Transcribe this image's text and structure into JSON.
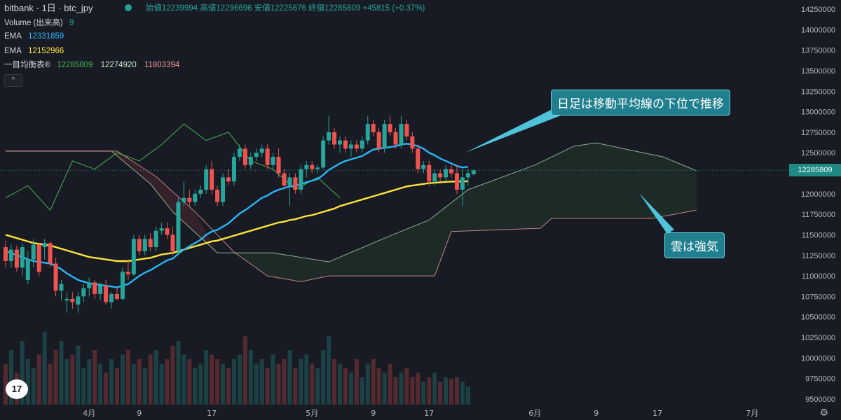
{
  "header": {
    "symbol": "bitbank · 1日 · btc_jpy",
    "ohlc": "始値12239994 高値12296696 安値12225676 終値12285809 +45815 (+0.37%)"
  },
  "legend": {
    "volume_label": "Volume (出来高)",
    "volume_value": "9",
    "ema1_label": "EMA",
    "ema1_value": "12331859",
    "ema2_label": "EMA",
    "ema2_value": "12152966",
    "ichimoku_label": "一目均衡表®",
    "ichimoku_v1": "12285809",
    "ichimoku_v2": "12274920",
    "ichimoku_v3": "11803394",
    "collapse": "^"
  },
  "colors": {
    "up": "#26a69a",
    "down": "#ef5350",
    "ema_fast": "#29b6f6",
    "ema_slow": "#fbe53b",
    "cloud_bull_edge": "#a5d6a7",
    "cloud_bear_edge": "#ef9a9a",
    "chikou": "#4caf50",
    "ichi_v2_color": "#cfe8cf",
    "ichi_v3_color": "#ef9a9a",
    "accent": "#1f8a85"
  },
  "annotations": {
    "callout1": "日足は移動平均線の下位で推移",
    "callout2": "雲は強気"
  },
  "last_price_tag": "12285809",
  "tv_logo": "17",
  "gear_icon": "⚙",
  "chart_data": {
    "type": "candlestick",
    "ylim": [
      9400000,
      14300000
    ],
    "y_ticks": [
      "14250000",
      "14000000",
      "13750000",
      "13500000",
      "13250000",
      "13000000",
      "12750000",
      "12500000",
      "12250000",
      "12000000",
      "11750000",
      "11500000",
      "11250000",
      "11000000",
      "10750000",
      "10500000",
      "10250000",
      "10000000",
      "9750000",
      "9500000"
    ],
    "x_ticks": [
      {
        "label": "4月",
        "idx": 15
      },
      {
        "label": "9",
        "idx": 24
      },
      {
        "label": "17",
        "idx": 37
      },
      {
        "label": "5月",
        "idx": 55
      },
      {
        "label": "9",
        "idx": 66
      },
      {
        "label": "17",
        "idx": 76
      },
      {
        "label": "6月",
        "idx": 95
      },
      {
        "label": "9",
        "idx": 106
      },
      {
        "label": "17",
        "idx": 117
      },
      {
        "label": "7月",
        "idx": 134
      }
    ],
    "candles": [
      [
        11350000,
        11430000,
        11100000,
        11180000
      ],
      [
        11180000,
        11380000,
        11100000,
        11320000
      ],
      [
        11320000,
        11370000,
        11050000,
        11100000
      ],
      [
        11100000,
        11400000,
        11000000,
        11350000
      ],
      [
        10950000,
        11300000,
        10900000,
        11200000
      ],
      [
        11200000,
        11450000,
        11100000,
        11380000
      ],
      [
        11380000,
        11400000,
        11000000,
        11050000
      ],
      [
        11350000,
        11450000,
        11200000,
        11400000
      ],
      [
        11400000,
        11420000,
        11100000,
        11150000
      ],
      [
        11150000,
        11220000,
        10750000,
        10820000
      ],
      [
        10820000,
        10950000,
        10700000,
        10900000
      ],
      [
        10700000,
        10800000,
        10550000,
        10720000
      ],
      [
        10720000,
        10800000,
        10600000,
        10680000
      ],
      [
        10650000,
        10800000,
        10550000,
        10750000
      ],
      [
        10750000,
        10900000,
        10680000,
        10850000
      ],
      [
        10850000,
        10980000,
        10750000,
        10920000
      ],
      [
        10920000,
        10950000,
        10720000,
        10780000
      ],
      [
        10780000,
        10920000,
        10700000,
        10880000
      ],
      [
        10880000,
        10950000,
        10650000,
        10680000
      ],
      [
        10680000,
        10800000,
        10600000,
        10780000
      ],
      [
        10780000,
        10850000,
        10700000,
        10720000
      ],
      [
        10720000,
        11100000,
        10700000,
        11050000
      ],
      [
        11050000,
        11200000,
        10950000,
        11020000
      ],
      [
        11020000,
        11500000,
        11000000,
        11450000
      ],
      [
        11450000,
        11500000,
        11250000,
        11300000
      ],
      [
        11300000,
        11500000,
        11250000,
        11450000
      ],
      [
        11450000,
        11520000,
        11300000,
        11350000
      ],
      [
        11350000,
        11600000,
        11300000,
        11550000
      ],
      [
        11550000,
        11650000,
        11500000,
        11580000
      ],
      [
        11580000,
        11650000,
        11450000,
        11500000
      ],
      [
        11500000,
        11600000,
        11250000,
        11300000
      ],
      [
        11300000,
        11950000,
        11250000,
        11900000
      ],
      [
        11900000,
        12150000,
        11850000,
        11950000
      ],
      [
        11950000,
        12050000,
        11850000,
        11900000
      ],
      [
        11900000,
        12050000,
        11850000,
        12000000
      ],
      [
        12000000,
        12100000,
        11950000,
        12050000
      ],
      [
        12050000,
        12350000,
        12000000,
        12300000
      ],
      [
        12300000,
        12400000,
        12000000,
        12050000
      ],
      [
        12050000,
        12100000,
        11850000,
        11900000
      ],
      [
        11900000,
        12250000,
        11850000,
        12200000
      ],
      [
        12200000,
        12300000,
        12100000,
        12150000
      ],
      [
        12150000,
        12500000,
        12100000,
        12450000
      ],
      [
        12450000,
        12600000,
        12400000,
        12550000
      ],
      [
        12550000,
        12600000,
        12300000,
        12350000
      ],
      [
        12350000,
        12500000,
        12300000,
        12450000
      ],
      [
        12450000,
        12550000,
        12400000,
        12500000
      ],
      [
        12500000,
        12600000,
        12450000,
        12550000
      ],
      [
        12550000,
        12600000,
        12300000,
        12350000
      ],
      [
        12350000,
        12500000,
        12300000,
        12450000
      ],
      [
        12450000,
        12550000,
        12200000,
        12250000
      ],
      [
        12250000,
        12300000,
        12050000,
        12100000
      ],
      [
        12100000,
        12250000,
        11850000,
        12200000
      ],
      [
        12200000,
        12250000,
        12000000,
        12050000
      ],
      [
        12050000,
        12350000,
        12000000,
        12300000
      ],
      [
        12300000,
        12400000,
        12200000,
        12350000
      ],
      [
        12350000,
        12400000,
        12250000,
        12300000
      ],
      [
        12300000,
        12350000,
        12250000,
        12320000
      ],
      [
        12320000,
        12700000,
        12300000,
        12650000
      ],
      [
        12650000,
        12950000,
        12600000,
        12750000
      ],
      [
        12750000,
        12800000,
        12550000,
        12600000
      ],
      [
        12600000,
        12700000,
        12500000,
        12650000
      ],
      [
        12650000,
        12700000,
        12500000,
        12550000
      ],
      [
        12550000,
        12650000,
        12450000,
        12600000
      ],
      [
        12600000,
        12650000,
        12500000,
        12550000
      ],
      [
        12550000,
        12700000,
        12500000,
        12650000
      ],
      [
        12650000,
        12950000,
        12600000,
        12850000
      ],
      [
        12850000,
        12900000,
        12700000,
        12750000
      ],
      [
        12750000,
        12800000,
        12500000,
        12550000
      ],
      [
        12550000,
        12900000,
        12500000,
        12850000
      ],
      [
        12850000,
        12950000,
        12700000,
        12750000
      ],
      [
        12750000,
        12800000,
        12550000,
        12600000
      ],
      [
        12600000,
        12950000,
        12550000,
        12850000
      ],
      [
        12850000,
        12900000,
        12650000,
        12700000
      ],
      [
        12700000,
        12750000,
        12500000,
        12550000
      ],
      [
        12550000,
        12600000,
        12250000,
        12300000
      ],
      [
        12300000,
        12400000,
        12250000,
        12350000
      ],
      [
        12350000,
        12400000,
        12100000,
        12150000
      ],
      [
        12150000,
        12300000,
        12100000,
        12250000
      ],
      [
        12250000,
        12300000,
        12150000,
        12200000
      ],
      [
        12200000,
        12350000,
        12150000,
        12300000
      ],
      [
        12300000,
        12350000,
        12200000,
        12250000
      ],
      [
        12250000,
        12350000,
        12000000,
        12050000
      ],
      [
        12050000,
        12300000,
        11850000,
        12200000
      ],
      [
        12200000,
        12300000,
        12100000,
        12250000
      ],
      [
        12239994,
        12296696,
        12225676,
        12285809
      ]
    ],
    "volume": [
      0.45,
      0.6,
      0.35,
      0.7,
      0.5,
      0.4,
      0.55,
      0.8,
      0.45,
      0.6,
      0.7,
      0.5,
      0.55,
      0.65,
      0.4,
      0.5,
      0.6,
      0.45,
      0.35,
      0.5,
      0.4,
      0.55,
      0.6,
      0.45,
      0.5,
      0.4,
      0.55,
      0.6,
      0.45,
      0.5,
      0.65,
      0.7,
      0.55,
      0.5,
      0.4,
      0.45,
      0.6,
      0.55,
      0.5,
      0.45,
      0.4,
      0.5,
      0.55,
      0.75,
      0.6,
      0.45,
      0.5,
      0.4,
      0.55,
      0.45,
      0.5,
      0.6,
      0.4,
      0.5,
      0.55,
      0.45,
      0.4,
      0.6,
      0.75,
      0.5,
      0.45,
      0.4,
      0.35,
      0.5,
      0.3,
      0.45,
      0.5,
      0.4,
      0.35,
      0.45,
      0.3,
      0.35,
      0.4,
      0.3,
      0.35,
      0.25,
      0.3,
      0.35,
      0.25,
      0.3,
      0.28,
      0.3,
      0.25,
      0.2
    ],
    "ema_fast": [
      11300000,
      11280000,
      11250000,
      11230000,
      11200000,
      11180000,
      11170000,
      11160000,
      11150000,
      11120000,
      11080000,
      11030000,
      10990000,
      10950000,
      10930000,
      10910000,
      10900000,
      10890000,
      10880000,
      10870000,
      10860000,
      10880000,
      10900000,
      10950000,
      11000000,
      11040000,
      11070000,
      11110000,
      11150000,
      11190000,
      11210000,
      11270000,
      11320000,
      11360000,
      11400000,
      11440000,
      11500000,
      11540000,
      11560000,
      11600000,
      11640000,
      11700000,
      11760000,
      11800000,
      11850000,
      11900000,
      11950000,
      11980000,
      12020000,
      12050000,
      12070000,
      12090000,
      12100000,
      12120000,
      12140000,
      12160000,
      12180000,
      12230000,
      12290000,
      12330000,
      12370000,
      12400000,
      12420000,
      12440000,
      12460000,
      12500000,
      12540000,
      12550000,
      12560000,
      12570000,
      12580000,
      12600000,
      12610000,
      12600000,
      12580000,
      12550000,
      12500000,
      12470000,
      12430000,
      12400000,
      12370000,
      12340000,
      12320000,
      12330000
    ],
    "ema_slow": [
      11500000,
      11480000,
      11460000,
      11440000,
      11420000,
      11400000,
      11390000,
      11380000,
      11370000,
      11350000,
      11330000,
      11310000,
      11290000,
      11270000,
      11250000,
      11230000,
      11220000,
      11210000,
      11200000,
      11190000,
      11180000,
      11180000,
      11180000,
      11190000,
      11200000,
      11210000,
      11220000,
      11240000,
      11260000,
      11270000,
      11280000,
      11300000,
      11320000,
      11340000,
      11360000,
      11380000,
      11400000,
      11420000,
      11430000,
      11450000,
      11470000,
      11490000,
      11510000,
      11530000,
      11550000,
      11570000,
      11590000,
      11610000,
      11630000,
      11650000,
      11660000,
      11680000,
      11690000,
      11710000,
      11730000,
      11740000,
      11760000,
      11780000,
      11800000,
      11820000,
      11850000,
      11870000,
      11890000,
      11910000,
      11930000,
      11950000,
      11970000,
      11990000,
      12010000,
      12030000,
      12050000,
      12070000,
      12090000,
      12100000,
      12110000,
      12120000,
      12130000,
      12135000,
      12140000,
      12145000,
      12148000,
      12150000,
      12151000,
      12152966
    ],
    "span_a": [
      {
        "i": 0,
        "v": 12520000
      },
      {
        "i": 19,
        "v": 12520000
      },
      {
        "i": 26,
        "v": 12120000
      },
      {
        "i": 30,
        "v": 11780000
      },
      {
        "i": 38,
        "v": 11280000
      },
      {
        "i": 48,
        "v": 11280000
      },
      {
        "i": 58,
        "v": 11170000
      },
      {
        "i": 68,
        "v": 11460000
      },
      {
        "i": 76,
        "v": 11680000
      },
      {
        "i": 83,
        "v": 12050000
      },
      {
        "i": 95,
        "v": 12350000
      },
      {
        "i": 102,
        "v": 12580000
      },
      {
        "i": 106,
        "v": 12620000
      },
      {
        "i": 113,
        "v": 12520000
      },
      {
        "i": 118,
        "v": 12450000
      },
      {
        "i": 124,
        "v": 12280000
      }
    ],
    "span_b": [
      {
        "i": 0,
        "v": 12520000
      },
      {
        "i": 20,
        "v": 12520000
      },
      {
        "i": 27,
        "v": 12210000
      },
      {
        "i": 34,
        "v": 11780000
      },
      {
        "i": 41,
        "v": 11290000
      },
      {
        "i": 47,
        "v": 11000000
      },
      {
        "i": 53,
        "v": 10930000
      },
      {
        "i": 58,
        "v": 11000000
      },
      {
        "i": 66,
        "v": 11000000
      },
      {
        "i": 77,
        "v": 11000000
      },
      {
        "i": 80,
        "v": 11540000
      },
      {
        "i": 96,
        "v": 11580000
      },
      {
        "i": 98,
        "v": 11700000
      },
      {
        "i": 116,
        "v": 11700000
      },
      {
        "i": 124,
        "v": 11800000
      }
    ],
    "chikou": [
      {
        "i": 0,
        "v": 11950000
      },
      {
        "i": 4,
        "v": 12100000
      },
      {
        "i": 8,
        "v": 11800000
      },
      {
        "i": 12,
        "v": 12400000
      },
      {
        "i": 16,
        "v": 12300000
      },
      {
        "i": 20,
        "v": 12500000
      },
      {
        "i": 24,
        "v": 12400000
      },
      {
        "i": 28,
        "v": 12600000
      },
      {
        "i": 32,
        "v": 12850000
      },
      {
        "i": 36,
        "v": 12650000
      },
      {
        "i": 40,
        "v": 12750000
      },
      {
        "i": 44,
        "v": 12400000
      },
      {
        "i": 48,
        "v": 12300000
      },
      {
        "i": 52,
        "v": 12050000
      },
      {
        "i": 56,
        "v": 12200000
      },
      {
        "i": 60,
        "v": 11950000
      }
    ]
  }
}
